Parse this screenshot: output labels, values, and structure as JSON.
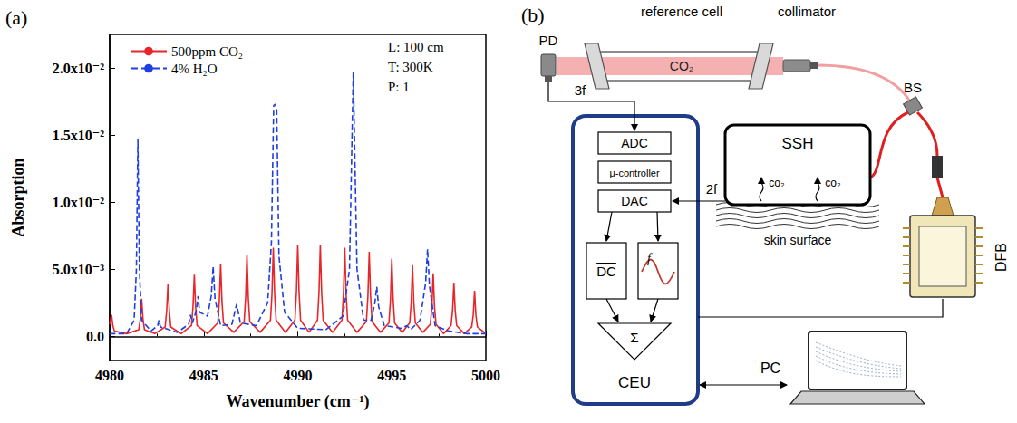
{
  "chart_data": {
    "type": "line",
    "panel": "(a)",
    "x_label": "Wavenumber (cm⁻¹)",
    "y_label": "Absorption",
    "xlim": [
      4980,
      5000
    ],
    "xticks": [
      4980,
      4985,
      4990,
      4995,
      5000
    ],
    "ylim": [
      -0.0018,
      0.0225
    ],
    "yticks": [
      {
        "value": 0,
        "label": "0.0"
      },
      {
        "value": 0.005,
        "label": "5.0x10⁻³"
      },
      {
        "value": 0.01,
        "label": "1.0x10⁻²"
      },
      {
        "value": 0.015,
        "label": "1.5x10⁻²"
      },
      {
        "value": 0.02,
        "label": "2.0x10⁻²"
      }
    ],
    "grid": false,
    "legend": "upper left",
    "annotations": [
      "L: 100 cm",
      "T: 300K",
      "P: 1"
    ],
    "series": [
      {
        "name": "500ppm CO₂",
        "color": "#e8262a",
        "line_style": "solid",
        "x": [
          4980.0,
          4980.1,
          4980.17,
          4980.25,
          4980.9,
          4981.55,
          4981.63,
          4981.7,
          4981.77,
          4981.85,
          4982.4,
          4982.95,
          4983.03,
          4983.1,
          4983.17,
          4983.25,
          4983.8,
          4984.35,
          4984.43,
          4984.5,
          4984.57,
          4984.65,
          4985.2,
          4985.75,
          4985.83,
          4985.9,
          4985.97,
          4986.05,
          4986.6,
          4987.15,
          4987.23,
          4987.3,
          4987.37,
          4987.45,
          4988.0,
          4988.55,
          4988.63,
          4988.7,
          4988.77,
          4988.85,
          4989.35,
          4989.85,
          4989.93,
          4990.0,
          4990.07,
          4990.15,
          4990.6,
          4991.05,
          4991.13,
          4991.2,
          4991.27,
          4991.35,
          4991.85,
          4992.35,
          4992.43,
          4992.5,
          4992.57,
          4992.65,
          4993.15,
          4993.65,
          4993.73,
          4993.8,
          4993.87,
          4993.95,
          4994.4,
          4994.85,
          4994.93,
          4995.0,
          4995.07,
          4995.15,
          4995.55,
          4995.95,
          4996.03,
          4996.1,
          4996.17,
          4996.25,
          4996.65,
          4997.05,
          4997.13,
          4997.2,
          4997.27,
          4997.35,
          4997.75,
          4998.15,
          4998.23,
          4998.3,
          4998.37,
          4998.45,
          4998.85,
          4999.25,
          4999.33,
          4999.4,
          4999.47,
          4999.55,
          5000.0
        ],
        "values": [
          0.0009,
          0.0016,
          0.0008,
          0.0004,
          0.0002,
          0.0005,
          0.0013,
          0.0028,
          0.0013,
          0.0005,
          0.0002,
          0.0007,
          0.0019,
          0.0039,
          0.0019,
          0.0007,
          0.0002,
          0.0008,
          0.0022,
          0.0046,
          0.0022,
          0.0008,
          0.0002,
          0.001,
          0.0026,
          0.0054,
          0.0026,
          0.001,
          0.0003,
          0.0011,
          0.0029,
          0.0061,
          0.0029,
          0.0011,
          0.0003,
          0.0012,
          0.0032,
          0.0066,
          0.0032,
          0.0012,
          0.0003,
          0.0012,
          0.0033,
          0.0068,
          0.0033,
          0.0012,
          0.0003,
          0.0012,
          0.0033,
          0.0068,
          0.0033,
          0.0012,
          0.0003,
          0.0012,
          0.0032,
          0.0066,
          0.0032,
          0.0012,
          0.0003,
          0.0011,
          0.003,
          0.0063,
          0.003,
          0.0011,
          0.0003,
          0.001,
          0.0028,
          0.0058,
          0.0028,
          0.001,
          0.0003,
          0.001,
          0.0025,
          0.0053,
          0.0025,
          0.001,
          0.0003,
          0.0009,
          0.0022,
          0.0047,
          0.0022,
          0.0009,
          0.0002,
          0.0008,
          0.0019,
          0.004,
          0.0019,
          0.0008,
          0.0002,
          0.0007,
          0.0016,
          0.0034,
          0.0016,
          0.0007,
          0.0002
        ]
      },
      {
        "name": "4% H₂O",
        "color": "#1f3fe0",
        "line_style": "dashed",
        "x": [
          4980.0,
          4980.9,
          4981.3,
          4981.42,
          4981.5,
          4981.58,
          4981.7,
          4982.2,
          4982.55,
          4982.62,
          4982.7,
          4983.6,
          4984.2,
          4984.3,
          4984.4,
          4984.62,
          4984.7,
          4984.78,
          4985.2,
          4985.4,
          4985.5,
          4985.6,
          4985.9,
          4986.5,
          4986.75,
          4986.95,
          4987.8,
          4988.4,
          4988.6,
          4988.72,
          4988.8,
          4988.88,
          4989.0,
          4989.3,
          4990.0,
          4991.5,
          4992.4,
          4992.75,
          4992.9,
          4992.95,
          4993.0,
          4993.15,
          4993.5,
          4993.9,
          4994.1,
          4994.2,
          4994.3,
          4994.6,
          4995.5,
          4995.8,
          4996.0,
          4996.5,
          4996.8,
          4996.9,
          4997.0,
          4997.3,
          4998.0,
          4999.0,
          5000.0
        ],
        "values": [
          0.0002,
          0.0002,
          0.0012,
          0.005,
          0.0147,
          0.005,
          0.0012,
          0.0004,
          0.0008,
          0.0012,
          0.0007,
          0.0003,
          0.0009,
          0.0016,
          0.001,
          0.002,
          0.003,
          0.0018,
          0.0015,
          0.003,
          0.0052,
          0.0028,
          0.0008,
          0.0009,
          0.0024,
          0.001,
          0.0008,
          0.0025,
          0.007,
          0.0172,
          0.0173,
          0.017,
          0.006,
          0.0018,
          0.0006,
          0.0005,
          0.0015,
          0.005,
          0.016,
          0.0197,
          0.016,
          0.005,
          0.0012,
          0.0012,
          0.0025,
          0.0037,
          0.0022,
          0.0008,
          0.0006,
          0.0008,
          0.0005,
          0.0012,
          0.004,
          0.0065,
          0.0038,
          0.0008,
          0.0004,
          0.0002,
          0.0002
        ]
      }
    ]
  },
  "diagram": {
    "panel": "(b)",
    "photodetector": "PD",
    "reference_cell": {
      "label": "reference cell",
      "gas": "CO₂"
    },
    "collimator": "collimator",
    "beam_splitter": "BS",
    "signal_3f": "3f",
    "signal_2f": "2f",
    "ceu": {
      "label": "CEU",
      "blocks": [
        "ADC",
        "μ-controller",
        "DAC"
      ],
      "dc": "DC",
      "sine": "f",
      "sum": "Σ"
    },
    "ssh": {
      "label": "SSH",
      "gas": [
        "co₂",
        "co₂"
      ]
    },
    "skin": "skin surface",
    "laser": "DFB",
    "computer": "PC"
  }
}
